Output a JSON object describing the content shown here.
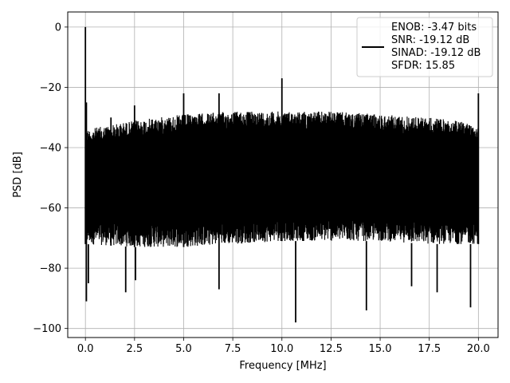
{
  "chart_data": {
    "type": "line",
    "title": "",
    "xlabel": "Frequency [MHz]",
    "ylabel": "PSD [dB]",
    "xlim": [
      -0.9,
      21.0
    ],
    "ylim": [
      -103,
      5
    ],
    "xticks": [
      0.0,
      2.5,
      5.0,
      7.5,
      10.0,
      12.5,
      15.0,
      17.5,
      20.0
    ],
    "xtick_labels": [
      "0.0",
      "2.5",
      "5.0",
      "7.5",
      "10.0",
      "12.5",
      "15.0",
      "17.5",
      "20.0"
    ],
    "yticks": [
      0,
      -20,
      -40,
      -60,
      -80,
      -100
    ],
    "ytick_labels": [
      "0",
      "−20",
      "−40",
      "−60",
      "−80",
      "−100"
    ],
    "grid": true,
    "legend_position": "top-right",
    "line_color": "#000000",
    "series": [
      {
        "legend_lines": [
          "ENOB: -3.47 bits",
          "SNR: -19.12 dB",
          "SINAD: -19.12 dB",
          "SFDR: 15.85"
        ],
        "x_range": [
          0.0,
          20.0
        ],
        "noise_envelope": [
          {
            "x": 0.0,
            "upper": -34,
            "lower": -72
          },
          {
            "x": 2.5,
            "upper": -31,
            "lower": -73
          },
          {
            "x": 5.0,
            "upper": -29,
            "lower": -73
          },
          {
            "x": 7.5,
            "upper": -28,
            "lower": -72
          },
          {
            "x": 10.0,
            "upper": -28,
            "lower": -71
          },
          {
            "x": 12.5,
            "upper": -28,
            "lower": -71
          },
          {
            "x": 15.0,
            "upper": -29,
            "lower": -71
          },
          {
            "x": 17.5,
            "upper": -30,
            "lower": -72
          },
          {
            "x": 20.0,
            "upper": -32,
            "lower": -72
          }
        ],
        "spikes": [
          {
            "x": 0.0,
            "y": 0
          },
          {
            "x": 0.05,
            "y": -25
          },
          {
            "x": 1.3,
            "y": -30
          },
          {
            "x": 2.5,
            "y": -26
          },
          {
            "x": 5.0,
            "y": -22
          },
          {
            "x": 6.8,
            "y": -22
          },
          {
            "x": 10.0,
            "y": -17
          },
          {
            "x": 20.0,
            "y": -22
          }
        ],
        "dips": [
          {
            "x": 0.05,
            "y": -91
          },
          {
            "x": 0.15,
            "y": -85
          },
          {
            "x": 2.05,
            "y": -88
          },
          {
            "x": 2.55,
            "y": -84
          },
          {
            "x": 6.8,
            "y": -87
          },
          {
            "x": 10.7,
            "y": -98
          },
          {
            "x": 14.3,
            "y": -94
          },
          {
            "x": 16.6,
            "y": -86
          },
          {
            "x": 17.9,
            "y": -88
          },
          {
            "x": 19.6,
            "y": -93
          }
        ]
      }
    ]
  }
}
